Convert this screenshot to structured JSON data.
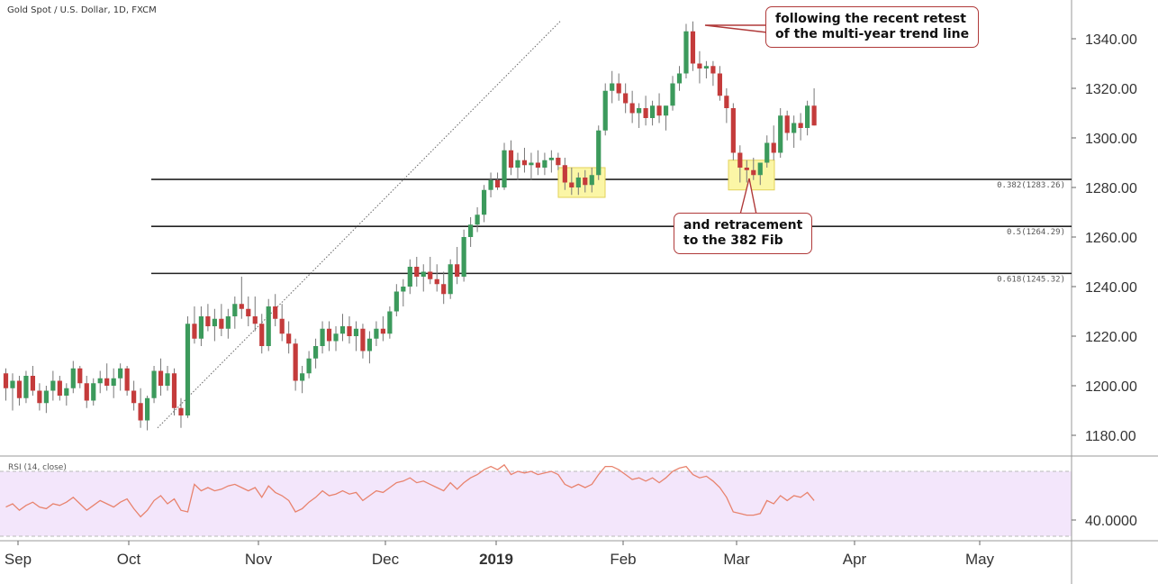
{
  "title": "Gold Spot / U.S. Dollar, 1D, FXCM",
  "rsi_label": "RSI (14, close)",
  "callouts": {
    "top": [
      "following the recent retest",
      "of the multi-year trend line"
    ],
    "bottom": [
      "and retracement",
      "to the 382 Fib"
    ]
  },
  "colors": {
    "up": "#3c9a5c",
    "down": "#c43b3b",
    "rsi_line": "#e8836e",
    "rsi_band": "#f3e6fb",
    "highlight": "#fbf6a6"
  },
  "chart_data": {
    "type": "candlestick",
    "symbol": "Gold Spot / U.S. Dollar",
    "timeframe": "1D",
    "source": "FXCM",
    "x_axis": {
      "labels": [
        "Sep",
        "Oct",
        "Nov",
        "Dec",
        "2019",
        "Feb",
        "Mar",
        "Apr",
        "May"
      ]
    },
    "y_axis": {
      "ticks": [
        1180,
        1200,
        1220,
        1240,
        1260,
        1280,
        1300,
        1320,
        1340
      ],
      "tick_labels": [
        "1180.00",
        "1200.00",
        "1220.00",
        "1240.00",
        "1260.00",
        "1280.00",
        "1300.00",
        "1320.00",
        "1340.00"
      ],
      "range": [
        1172,
        1355
      ]
    },
    "fib_levels": [
      {
        "label": "0.382(1283.26)",
        "value": 1283.26
      },
      {
        "label": "0.5(1264.29)",
        "value": 1264.29
      },
      {
        "label": "0.618(1245.32)",
        "value": 1245.32
      }
    ],
    "trendline": {
      "start": {
        "date": "2018-10-09",
        "value": 1183
      },
      "end": {
        "date": "2019-02-12",
        "value": 1344
      },
      "style": "dotted"
    },
    "highlights": [
      {
        "from": "2019-01-15",
        "to": "2019-01-21",
        "low": 1276,
        "high": 1288
      },
      {
        "from": "2019-03-01",
        "to": "2019-03-07",
        "low": 1279,
        "high": 1291
      }
    ],
    "start_date": "2018-08-28",
    "candles": [
      [
        1205,
        1207,
        1194,
        1199
      ],
      [
        1199,
        1205,
        1190,
        1202
      ],
      [
        1202,
        1204,
        1192,
        1195
      ],
      [
        1195,
        1206,
        1193,
        1204
      ],
      [
        1204,
        1208,
        1196,
        1198
      ],
      [
        1198,
        1201,
        1190,
        1193
      ],
      [
        1193,
        1200,
        1189,
        1198
      ],
      [
        1198,
        1206,
        1194,
        1202
      ],
      [
        1202,
        1204,
        1194,
        1196
      ],
      [
        1196,
        1201,
        1192,
        1199
      ],
      [
        1199,
        1210,
        1197,
        1207
      ],
      [
        1207,
        1208,
        1199,
        1201
      ],
      [
        1201,
        1204,
        1191,
        1194
      ],
      [
        1194,
        1203,
        1192,
        1201
      ],
      [
        1201,
        1206,
        1197,
        1203
      ],
      [
        1203,
        1209,
        1198,
        1200
      ],
      [
        1200,
        1207,
        1195,
        1203
      ],
      [
        1203,
        1209,
        1198,
        1207
      ],
      [
        1207,
        1208,
        1196,
        1198
      ],
      [
        1198,
        1202,
        1190,
        1193
      ],
      [
        1193,
        1199,
        1183,
        1186
      ],
      [
        1186,
        1196,
        1182,
        1195
      ],
      [
        1195,
        1208,
        1193,
        1206
      ],
      [
        1206,
        1211,
        1196,
        1200
      ],
      [
        1200,
        1208,
        1198,
        1205
      ],
      [
        1205,
        1207,
        1188,
        1191
      ],
      [
        1191,
        1195,
        1183,
        1188
      ],
      [
        1188,
        1228,
        1187,
        1225
      ],
      [
        1225,
        1232,
        1217,
        1219
      ],
      [
        1219,
        1232,
        1216,
        1228
      ],
      [
        1228,
        1233,
        1222,
        1224
      ],
      [
        1224,
        1231,
        1218,
        1227
      ],
      [
        1227,
        1233,
        1220,
        1223
      ],
      [
        1223,
        1231,
        1219,
        1228
      ],
      [
        1228,
        1236,
        1223,
        1233
      ],
      [
        1233,
        1244,
        1227,
        1231
      ],
      [
        1231,
        1236,
        1224,
        1228
      ],
      [
        1228,
        1236,
        1222,
        1225
      ],
      [
        1225,
        1229,
        1213,
        1216
      ],
      [
        1216,
        1235,
        1214,
        1232
      ],
      [
        1232,
        1237,
        1224,
        1227
      ],
      [
        1227,
        1233,
        1218,
        1221
      ],
      [
        1221,
        1226,
        1213,
        1217
      ],
      [
        1217,
        1219,
        1198,
        1202
      ],
      [
        1202,
        1208,
        1197,
        1205
      ],
      [
        1205,
        1214,
        1203,
        1211
      ],
      [
        1211,
        1219,
        1207,
        1216
      ],
      [
        1216,
        1226,
        1213,
        1223
      ],
      [
        1223,
        1226,
        1214,
        1218
      ],
      [
        1218,
        1224,
        1214,
        1221
      ],
      [
        1221,
        1229,
        1218,
        1224
      ],
      [
        1224,
        1228,
        1217,
        1220
      ],
      [
        1220,
        1226,
        1214,
        1223
      ],
      [
        1223,
        1225,
        1211,
        1214
      ],
      [
        1214,
        1222,
        1209,
        1219
      ],
      [
        1219,
        1226,
        1216,
        1223
      ],
      [
        1223,
        1228,
        1218,
        1221
      ],
      [
        1221,
        1232,
        1219,
        1230
      ],
      [
        1230,
        1241,
        1228,
        1238
      ],
      [
        1238,
        1243,
        1232,
        1240
      ],
      [
        1240,
        1251,
        1237,
        1248
      ],
      [
        1248,
        1252,
        1240,
        1244
      ],
      [
        1244,
        1249,
        1238,
        1246
      ],
      [
        1246,
        1252,
        1241,
        1243
      ],
      [
        1243,
        1249,
        1238,
        1241
      ],
      [
        1241,
        1246,
        1233,
        1237
      ],
      [
        1237,
        1251,
        1235,
        1249
      ],
      [
        1249,
        1256,
        1241,
        1244
      ],
      [
        1244,
        1263,
        1242,
        1260
      ],
      [
        1260,
        1268,
        1256,
        1265
      ],
      [
        1265,
        1272,
        1262,
        1269
      ],
      [
        1269,
        1281,
        1266,
        1279
      ],
      [
        1279,
        1286,
        1276,
        1283
      ],
      [
        1283,
        1286,
        1279,
        1280
      ],
      [
        1280,
        1298,
        1279,
        1295
      ],
      [
        1295,
        1299,
        1285,
        1288
      ],
      [
        1288,
        1294,
        1283,
        1291
      ],
      [
        1291,
        1296,
        1286,
        1289
      ],
      [
        1289,
        1294,
        1283,
        1290
      ],
      [
        1290,
        1295,
        1285,
        1288
      ],
      [
        1288,
        1294,
        1285,
        1291
      ],
      [
        1291,
        1295,
        1286,
        1292
      ],
      [
        1292,
        1294,
        1287,
        1289
      ],
      [
        1289,
        1292,
        1279,
        1282
      ],
      [
        1282,
        1288,
        1277,
        1280
      ],
      [
        1280,
        1286,
        1277,
        1284
      ],
      [
        1284,
        1287,
        1278,
        1281
      ],
      [
        1281,
        1288,
        1278,
        1285
      ],
      [
        1285,
        1305,
        1283,
        1303
      ],
      [
        1303,
        1322,
        1301,
        1319
      ],
      [
        1319,
        1327,
        1314,
        1322
      ],
      [
        1322,
        1326,
        1315,
        1318
      ],
      [
        1318,
        1322,
        1310,
        1314
      ],
      [
        1314,
        1319,
        1306,
        1310
      ],
      [
        1310,
        1314,
        1304,
        1312
      ],
      [
        1312,
        1317,
        1305,
        1308
      ],
      [
        1308,
        1315,
        1305,
        1313
      ],
      [
        1313,
        1318,
        1306,
        1309
      ],
      [
        1309,
        1313,
        1303,
        1313
      ],
      [
        1313,
        1325,
        1311,
        1322
      ],
      [
        1322,
        1329,
        1319,
        1326
      ],
      [
        1326,
        1346,
        1324,
        1343
      ],
      [
        1343,
        1347,
        1327,
        1330
      ],
      [
        1330,
        1335,
        1322,
        1328
      ],
      [
        1328,
        1331,
        1324,
        1329
      ],
      [
        1329,
        1331,
        1321,
        1326
      ],
      [
        1326,
        1329,
        1315,
        1317
      ],
      [
        1317,
        1320,
        1306,
        1312
      ],
      [
        1312,
        1314,
        1291,
        1294
      ],
      [
        1294,
        1297,
        1282,
        1288
      ],
      [
        1288,
        1291,
        1282,
        1287
      ],
      [
        1287,
        1292,
        1283,
        1285
      ],
      [
        1285,
        1290,
        1281,
        1290
      ],
      [
        1290,
        1301,
        1288,
        1298
      ],
      [
        1298,
        1305,
        1291,
        1294
      ],
      [
        1294,
        1312,
        1292,
        1309
      ],
      [
        1309,
        1311,
        1299,
        1302
      ],
      [
        1302,
        1309,
        1296,
        1306
      ],
      [
        1306,
        1310,
        1299,
        1304
      ],
      [
        1304,
        1315,
        1301,
        1313
      ],
      [
        1313,
        1320,
        1305,
        1305
      ]
    ],
    "rsi": {
      "label": "RSI (14, close)",
      "tick_label": "40.0000",
      "values": [
        48,
        50,
        46,
        49,
        51,
        48,
        47,
        50,
        49,
        51,
        54,
        50,
        46,
        49,
        52,
        50,
        48,
        51,
        53,
        47,
        42,
        46,
        52,
        55,
        50,
        53,
        46,
        45,
        62,
        58,
        60,
        58,
        59,
        61,
        62,
        60,
        58,
        60,
        54,
        61,
        57,
        55,
        52,
        45,
        47,
        51,
        54,
        58,
        55,
        56,
        58,
        56,
        57,
        52,
        55,
        58,
        57,
        60,
        63,
        64,
        66,
        63,
        64,
        62,
        60,
        58,
        63,
        59,
        63,
        66,
        68,
        71,
        73,
        71,
        74,
        68,
        70,
        69,
        70,
        68,
        69,
        70,
        68,
        62,
        60,
        62,
        60,
        62,
        68,
        73,
        73,
        71,
        68,
        65,
        66,
        64,
        66,
        63,
        66,
        70,
        72,
        73,
        68,
        66,
        67,
        64,
        60,
        54,
        45,
        44,
        43,
        43,
        44,
        52,
        50,
        55,
        52,
        55,
        54,
        57,
        52
      ]
    }
  }
}
